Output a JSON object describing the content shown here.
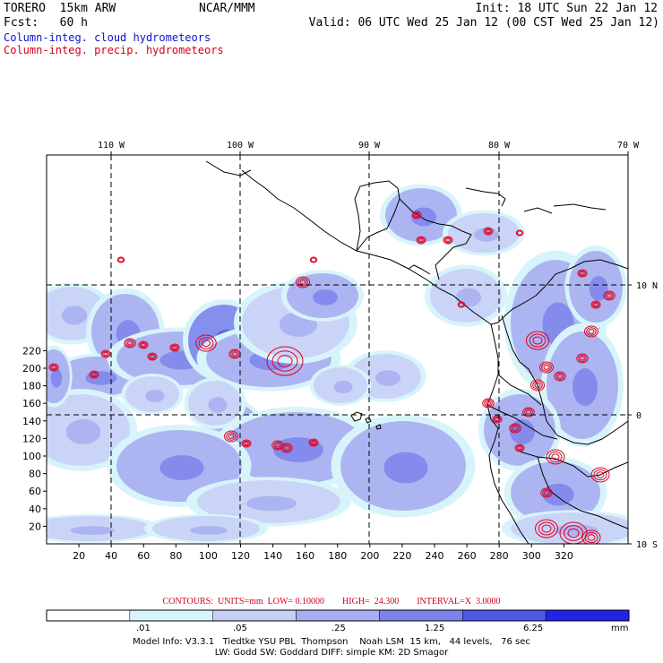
{
  "header": {
    "model": "TORERO  15km ARW",
    "org": "NCAR/MMM",
    "init": "Init: 18 UTC Sun 22 Jan 12",
    "fcst": "Fcst:   60 h",
    "valid": "Valid: 06 UTC Wed 25 Jan 12 (00 CST Wed 25 Jan 12)",
    "field1": "Column-integ. cloud hydrometeors",
    "field2": "Column-integ. precip. hydrometeors"
  },
  "colors": {
    "field1": "#1010d0",
    "field2": "#d0001a",
    "cloud_levels": [
      "#ffffff",
      "#d8f4fb",
      "#c9d0f6",
      "#a7aef1",
      "#7c84ec",
      "#4f58e9",
      "#2222e8"
    ],
    "precip_contour": "#e00020",
    "coast": "#000000"
  },
  "map": {
    "lon_labels": [
      "110 W",
      "100 W",
      "90 W",
      "80 W",
      "70 W"
    ],
    "lat_labels": [
      "10 N",
      "0",
      "10 S"
    ],
    "x_ticks": [
      "20",
      "40",
      "60",
      "80",
      "100",
      "120",
      "140",
      "160",
      "180",
      "200",
      "220",
      "240",
      "260",
      "280",
      "300",
      "320"
    ],
    "y_ticks": [
      "20",
      "40",
      "60",
      "80",
      "100",
      "120",
      "140",
      "160",
      "180",
      "200",
      "220"
    ]
  },
  "contours": "CONTOURS:  UNITS=mm  LOW= 0.10000        HIGH=  24.300        INTERVAL=X  3.0000",
  "colorbar": {
    "labels": [
      ".01",
      ".05",
      ".25",
      "1.25",
      "6.25"
    ],
    "unit": "mm"
  },
  "model_info": {
    "line1": "Model Info: V3.3.1   Tiedtke YSU PBL  Thompson    Noah LSM  15 km,   44 levels,   76 sec",
    "line2": "LW: Godd SW: Goddard DIFF: simple KM: 2D Smagor"
  }
}
